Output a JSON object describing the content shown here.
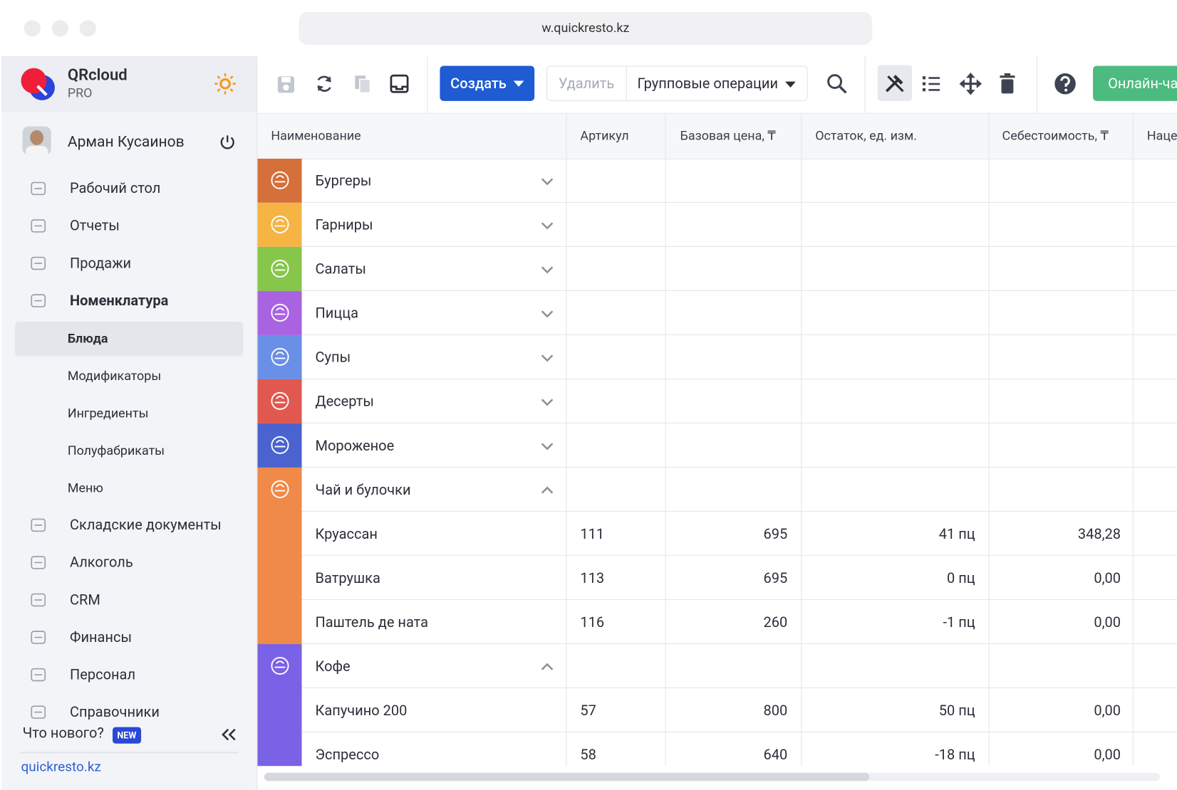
{
  "browser": {
    "url": "w.quickresto.kz"
  },
  "sidebar": {
    "brand": "QRcloud",
    "plan": "PRO",
    "user": "Арман Кусаинов",
    "nav": [
      {
        "label": "Рабочий стол"
      },
      {
        "label": "Отчеты"
      },
      {
        "label": "Продажи"
      },
      {
        "label": "Номенклатура",
        "active": true,
        "children": [
          {
            "label": "Блюда",
            "selected": true
          },
          {
            "label": "Модификаторы"
          },
          {
            "label": "Ингредиенты"
          },
          {
            "label": "Полуфабрикаты"
          },
          {
            "label": "Меню"
          }
        ]
      },
      {
        "label": "Складские документы"
      },
      {
        "label": "Алкоголь"
      },
      {
        "label": "CRM"
      },
      {
        "label": "Финансы"
      },
      {
        "label": "Персонал"
      },
      {
        "label": "Справочники"
      }
    ],
    "whats_new": "Что нового?",
    "badge": "NEW",
    "link": "quickresto.kz"
  },
  "toolbar": {
    "create": "Создать",
    "delete": "Удалить",
    "group_ops": "Групповые операции",
    "online": "Онлайн-ча"
  },
  "table": {
    "columns": [
      "Наименование",
      "Артикул",
      "Базовая цена, ₸",
      "Остаток, ед. изм.",
      "Себестоимость, ₸",
      "Наце"
    ],
    "groups": [
      {
        "name": "Бургеры",
        "color": "#d5703a",
        "expanded": false,
        "items": []
      },
      {
        "name": "Гарниры",
        "color": "#f5b443",
        "expanded": false,
        "items": []
      },
      {
        "name": "Салаты",
        "color": "#86c64a",
        "expanded": false,
        "items": []
      },
      {
        "name": "Пицца",
        "color": "#a963e0",
        "expanded": false,
        "items": []
      },
      {
        "name": "Супы",
        "color": "#6a8fe6",
        "expanded": false,
        "items": []
      },
      {
        "name": "Десерты",
        "color": "#e0584f",
        "expanded": false,
        "items": []
      },
      {
        "name": "Мороженое",
        "color": "#4a63cf",
        "expanded": false,
        "items": []
      },
      {
        "name": "Чай и булочки",
        "color": "#f08a48",
        "expanded": true,
        "items": [
          {
            "name": "Круассан",
            "sku": "111",
            "price": "695",
            "stock": "41 пц",
            "cost": "348,28"
          },
          {
            "name": "Ватрушка",
            "sku": "113",
            "price": "695",
            "stock": "0 пц",
            "cost": "0,00"
          },
          {
            "name": "Паштель де ната",
            "sku": "116",
            "price": "260",
            "stock": "-1 пц",
            "cost": "0,00"
          }
        ]
      },
      {
        "name": "Кофе",
        "color": "#7a62e6",
        "expanded": true,
        "items": [
          {
            "name": "Капучино 200",
            "sku": "57",
            "price": "800",
            "stock": "50 пц",
            "cost": "0,00"
          },
          {
            "name": "Эспрессо",
            "sku": "58",
            "price": "640",
            "stock": "-18 пц",
            "cost": "0,00"
          }
        ]
      }
    ]
  }
}
